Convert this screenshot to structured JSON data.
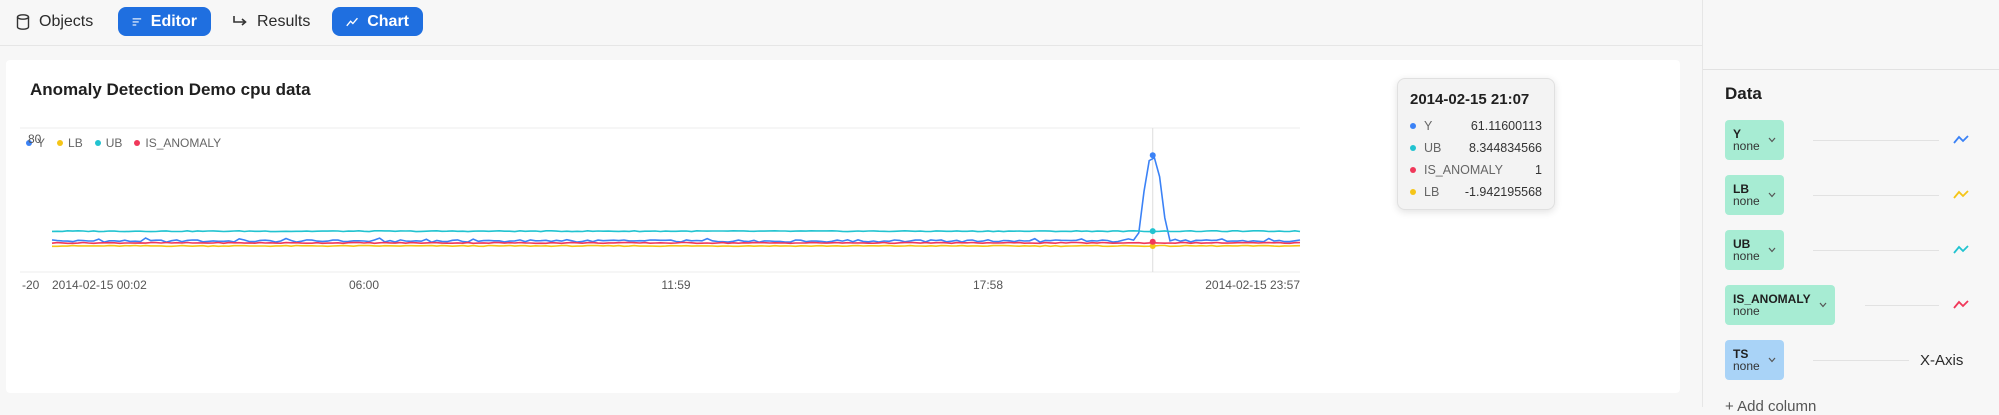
{
  "toolbar": {
    "objects": "Objects",
    "editor": "Editor",
    "results": "Results",
    "chart": "Chart"
  },
  "chart": {
    "title": "Anomaly Detection Demo cpu data",
    "legend": [
      {
        "name": "Y",
        "color": "#3b82f6"
      },
      {
        "name": "LB",
        "color": "#f5c518"
      },
      {
        "name": "UB",
        "color": "#22c3d0"
      },
      {
        "name": "IS_ANOMALY",
        "color": "#f0385a"
      }
    ]
  },
  "chart_data": {
    "type": "line",
    "title": "Anomaly Detection Demo cpu data",
    "ylim": [
      -20,
      80
    ],
    "y_ticks": [
      "80",
      "-20"
    ],
    "x_ticks": [
      "2014-02-15 00:02",
      "06:00",
      "11:59",
      "17:58",
      "2014-02-15 23:57"
    ],
    "grid": true,
    "legend_position": "top-left",
    "series": [
      {
        "name": "Y",
        "color": "#3b82f6",
        "baseline": 1.5,
        "spike_at": 0.882,
        "spike_value": 61.11600113
      },
      {
        "name": "LB",
        "color": "#f5c518",
        "baseline": -1.9
      },
      {
        "name": "UB",
        "color": "#22c3d0",
        "baseline": 8.34
      },
      {
        "name": "IS_ANOMALY",
        "color": "#f0385a",
        "baseline": 0.2
      }
    ],
    "hover_position": 0.882
  },
  "tooltip": {
    "title": "2014-02-15 21:07",
    "rows": [
      {
        "name": "Y",
        "value": "61.11600113",
        "color": "#3b82f6"
      },
      {
        "name": "UB",
        "value": "8.344834566",
        "color": "#22c3d0"
      },
      {
        "name": "IS_ANOMALY",
        "value": "1",
        "color": "#f0385a"
      },
      {
        "name": "LB",
        "value": "-1.942195568",
        "color": "#f5c518"
      }
    ]
  },
  "panel": {
    "heading": "Data",
    "columns": [
      {
        "name": "Y",
        "agg": "none",
        "icon_color": "#3b82f6"
      },
      {
        "name": "LB",
        "agg": "none",
        "icon_color": "#f5c518"
      },
      {
        "name": "UB",
        "agg": "none",
        "icon_color": "#22c3d0"
      },
      {
        "name": "IS_ANOMALY",
        "agg": "none",
        "icon_color": "#f0385a"
      },
      {
        "name": "TS",
        "agg": "none"
      }
    ],
    "x_axis_label": "X-Axis",
    "add_column": "+ Add column"
  }
}
